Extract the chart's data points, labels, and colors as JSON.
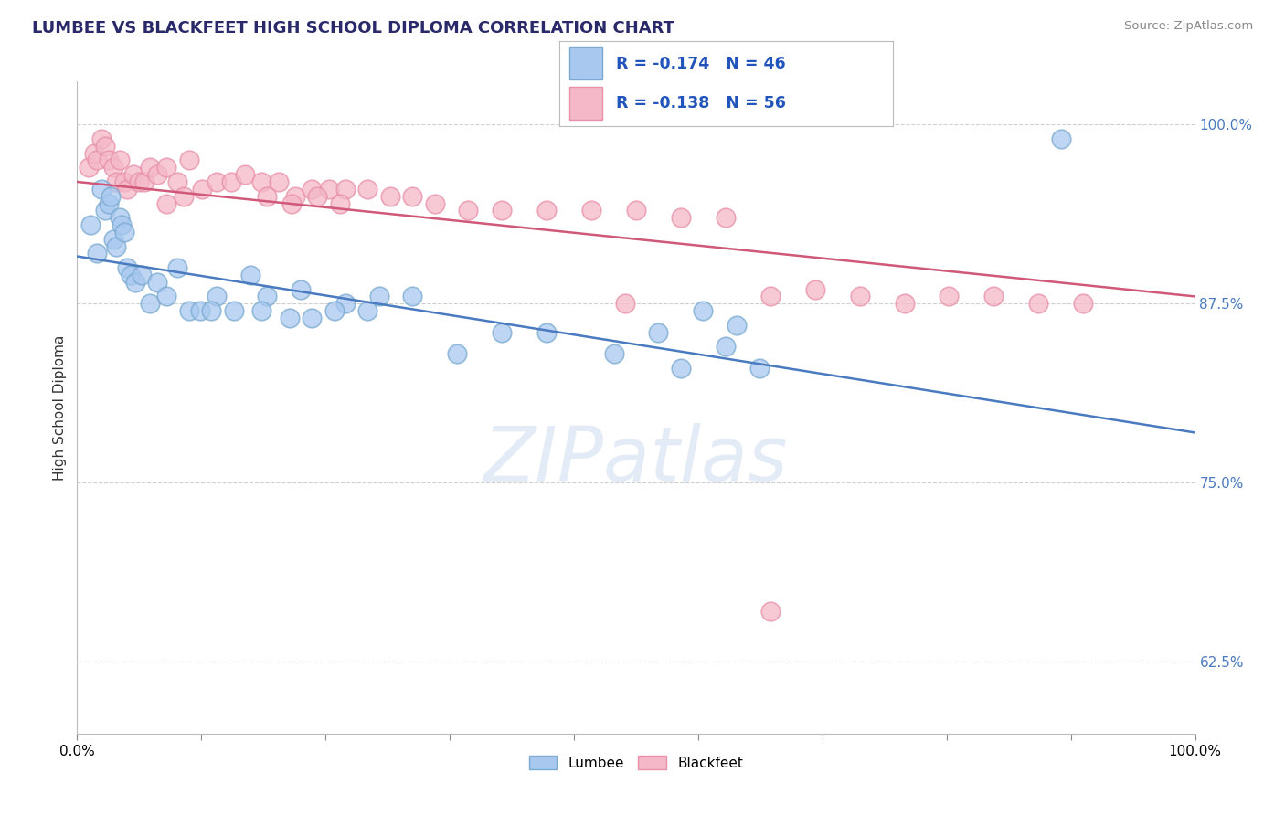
{
  "title": "LUMBEE VS BLACKFEET HIGH SCHOOL DIPLOMA CORRELATION CHART",
  "source": "Source: ZipAtlas.com",
  "ylabel": "High School Diploma",
  "watermark": "ZIPatlas",
  "xlim": [
    0.0,
    1.0
  ],
  "ylim": [
    0.575,
    1.03
  ],
  "yticks": [
    0.625,
    0.75,
    0.875,
    1.0
  ],
  "ytick_labels": [
    "62.5%",
    "75.0%",
    "87.5%",
    "100.0%"
  ],
  "xtick_labels": [
    "0.0%",
    "",
    "",
    "",
    "",
    "",
    "",
    "",
    "",
    "100.0%"
  ],
  "lumbee_R": -0.174,
  "lumbee_N": 46,
  "blackfeet_R": -0.138,
  "blackfeet_N": 56,
  "lumbee_color": "#a8c8f0",
  "blackfeet_color": "#f4b8c8",
  "lumbee_edge_color": "#7aaad0",
  "blackfeet_edge_color": "#e890a8",
  "lumbee_line_color": "#4a7abf",
  "blackfeet_line_color": "#d05878",
  "background_color": "#ffffff",
  "grid_color": "#d0d0d0",
  "lumbee_x": [
    0.012,
    0.018,
    0.022,
    0.025,
    0.028,
    0.03,
    0.032,
    0.035,
    0.038,
    0.04,
    0.042,
    0.045,
    0.048,
    0.052,
    0.058,
    0.065,
    0.072,
    0.08,
    0.09,
    0.1,
    0.11,
    0.125,
    0.14,
    0.155,
    0.17,
    0.19,
    0.21,
    0.24,
    0.27,
    0.3,
    0.165,
    0.2,
    0.23,
    0.26,
    0.42,
    0.48,
    0.52,
    0.56,
    0.59,
    0.12,
    0.34,
    0.38,
    0.58,
    0.88,
    0.54,
    0.61
  ],
  "lumbee_y": [
    0.93,
    0.91,
    0.955,
    0.94,
    0.945,
    0.95,
    0.92,
    0.915,
    0.935,
    0.93,
    0.925,
    0.9,
    0.895,
    0.89,
    0.895,
    0.875,
    0.89,
    0.88,
    0.9,
    0.87,
    0.87,
    0.88,
    0.87,
    0.895,
    0.88,
    0.865,
    0.865,
    0.875,
    0.88,
    0.88,
    0.87,
    0.885,
    0.87,
    0.87,
    0.855,
    0.84,
    0.855,
    0.87,
    0.86,
    0.87,
    0.84,
    0.855,
    0.845,
    0.99,
    0.83,
    0.83
  ],
  "blackfeet_x": [
    0.01,
    0.015,
    0.018,
    0.022,
    0.025,
    0.028,
    0.032,
    0.035,
    0.038,
    0.042,
    0.045,
    0.05,
    0.055,
    0.06,
    0.065,
    0.072,
    0.08,
    0.09,
    0.1,
    0.112,
    0.125,
    0.138,
    0.15,
    0.165,
    0.18,
    0.195,
    0.21,
    0.225,
    0.24,
    0.26,
    0.28,
    0.3,
    0.08,
    0.095,
    0.32,
    0.35,
    0.38,
    0.42,
    0.46,
    0.5,
    0.54,
    0.58,
    0.62,
    0.66,
    0.7,
    0.74,
    0.78,
    0.82,
    0.86,
    0.9,
    0.17,
    0.192,
    0.215,
    0.235,
    0.49,
    0.62
  ],
  "blackfeet_y": [
    0.97,
    0.98,
    0.975,
    0.99,
    0.985,
    0.975,
    0.97,
    0.96,
    0.975,
    0.96,
    0.955,
    0.965,
    0.96,
    0.96,
    0.97,
    0.965,
    0.97,
    0.96,
    0.975,
    0.955,
    0.96,
    0.96,
    0.965,
    0.96,
    0.96,
    0.95,
    0.955,
    0.955,
    0.955,
    0.955,
    0.95,
    0.95,
    0.945,
    0.95,
    0.945,
    0.94,
    0.94,
    0.94,
    0.94,
    0.94,
    0.935,
    0.935,
    0.88,
    0.885,
    0.88,
    0.875,
    0.88,
    0.88,
    0.875,
    0.875,
    0.95,
    0.945,
    0.95,
    0.945,
    0.875,
    0.66
  ],
  "lumbee_line_x": [
    0.0,
    1.0
  ],
  "lumbee_line_y_start": 0.908,
  "lumbee_line_y_end": 0.785,
  "blackfeet_line_y_start": 0.96,
  "blackfeet_line_y_end": 0.88
}
